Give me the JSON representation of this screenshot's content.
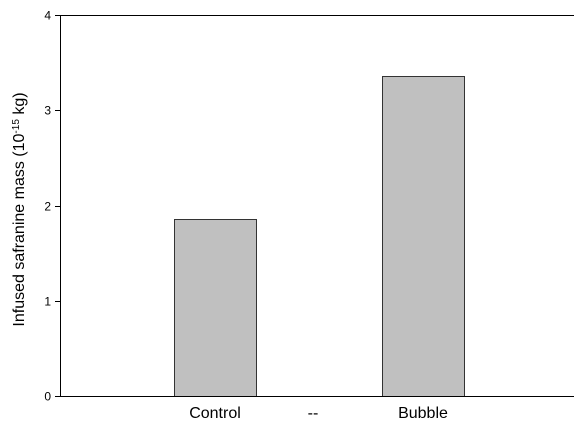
{
  "chart_data": {
    "type": "bar",
    "categories": [
      "Control",
      "--",
      "Bubble"
    ],
    "values": [
      1.86,
      null,
      3.36
    ],
    "title": "",
    "xlabel": "",
    "ylabel": "Infused safranine mass (10",
    "ylabel_exponent": "-15",
    "ylabel_unit": " kg)",
    "ylim": [
      0,
      4
    ],
    "yticks": [
      0,
      1,
      2,
      3,
      4
    ],
    "ytick_labels": [
      "0",
      "1",
      "2",
      "3",
      "4"
    ],
    "grid": false,
    "legend": "none",
    "bar_color": "#c0c0c0",
    "bar_edge_color": "#333333"
  }
}
